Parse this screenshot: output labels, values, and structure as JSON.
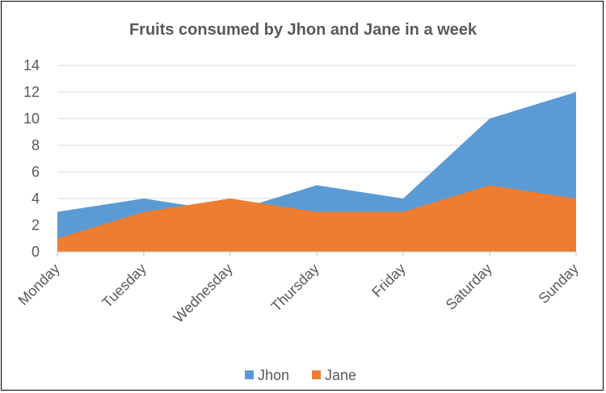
{
  "chart_data": {
    "type": "area",
    "title": "Fruits consumed by Jhon and Jane in a week",
    "xlabel": "",
    "ylabel": "",
    "categories": [
      "Monday",
      "Tuesday",
      "Wednesday",
      "Thursday",
      "Friday",
      "Saturday",
      "Sunday"
    ],
    "ylim": [
      0,
      14
    ],
    "yticks": [
      "0",
      "2",
      "4",
      "6",
      "8",
      "10",
      "12",
      "14"
    ],
    "grid": true,
    "legend_position": "bottom",
    "series": [
      {
        "name": "Jhon",
        "values": [
          3,
          4,
          3,
          5,
          4,
          10,
          12
        ],
        "color": "#5b9bd5"
      },
      {
        "name": "Jane",
        "values": [
          1,
          3,
          4,
          3,
          3,
          5,
          4
        ],
        "color": "#ed7d31"
      }
    ]
  }
}
